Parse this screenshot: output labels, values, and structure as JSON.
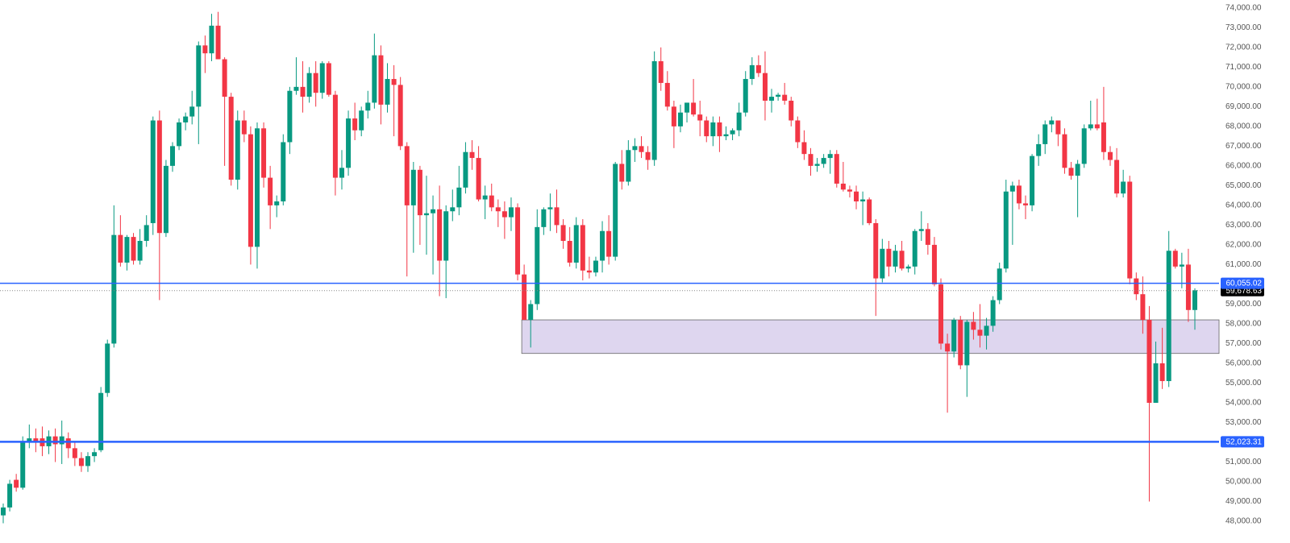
{
  "chart_data": {
    "type": "candlestick",
    "up_color": "#089981",
    "down_color": "#f23645",
    "ylim": [
      46900,
      74400
    ],
    "yticks": [
      {
        "value": 74000,
        "label": "74,000.00"
      },
      {
        "value": 73000,
        "label": "73,000.00"
      },
      {
        "value": 72000,
        "label": "72,000.00"
      },
      {
        "value": 71000,
        "label": "71,000.00"
      },
      {
        "value": 70000,
        "label": "70,000.00"
      },
      {
        "value": 69000,
        "label": "69,000.00"
      },
      {
        "value": 68000,
        "label": "68,000.00"
      },
      {
        "value": 67000,
        "label": "67,000.00"
      },
      {
        "value": 66000,
        "label": "66,000.00"
      },
      {
        "value": 65000,
        "label": "65,000.00"
      },
      {
        "value": 64000,
        "label": "64,000.00"
      },
      {
        "value": 63000,
        "label": "63,000.00"
      },
      {
        "value": 62000,
        "label": "62,000.00"
      },
      {
        "value": 61000,
        "label": "61,000.00"
      },
      {
        "value": 59000,
        "label": "59,000.00"
      },
      {
        "value": 58000,
        "label": "58,000.00"
      },
      {
        "value": 57000,
        "label": "57,000.00"
      },
      {
        "value": 56000,
        "label": "56,000.00"
      },
      {
        "value": 55000,
        "label": "55,000.00"
      },
      {
        "value": 54000,
        "label": "54,000.00"
      },
      {
        "value": 53000,
        "label": "53,000.00"
      },
      {
        "value": 51000,
        "label": "51,000.00"
      },
      {
        "value": 50000,
        "label": "50,000.00"
      },
      {
        "value": 49000,
        "label": "49,000.00"
      },
      {
        "value": 48000,
        "label": "48,000.00"
      }
    ],
    "horizontal_lines": [
      {
        "value": 60055.02,
        "label": "60,055.02",
        "color": "#2962ff"
      },
      {
        "value": 52023.31,
        "label": "52,023.31",
        "color": "#2962ff"
      }
    ],
    "current_price": {
      "value": 59678.63,
      "label": "59,678.63",
      "color": "#000000"
    },
    "zone": {
      "from_candle": 80,
      "high": 58200,
      "low": 56500,
      "color": "#ded6ef"
    },
    "open": [
      48300,
      48700,
      50100,
      49700,
      52000,
      52200,
      52200,
      51800,
      52300,
      51900,
      52200,
      51700,
      51200,
      50800,
      51300,
      51600,
      54500,
      57000,
      62500,
      61100,
      62400,
      61200,
      62200,
      63100,
      68300,
      62600,
      66000,
      67000,
      68200,
      68500,
      69000,
      72100,
      71700,
      73100,
      71400,
      69500,
      65300,
      68300,
      67600,
      61900,
      67900,
      65400,
      64000,
      64200,
      67200,
      69800,
      70000,
      69500,
      70700,
      69700,
      71200,
      69600,
      65400,
      65900,
      68400,
      67800,
      68800,
      69200,
      71600,
      69100,
      70400,
      70100,
      67000,
      64000,
      65800,
      63500,
      63600,
      63800,
      61200,
      63700,
      63900,
      64900,
      66700,
      66400,
      64300,
      64500,
      63900,
      63700,
      63400,
      63900,
      60500,
      58200,
      59000,
      62900,
      63800,
      63900,
      63000,
      62200,
      61100,
      63000,
      60700,
      60600,
      61200,
      62700,
      61400,
      66100,
      65200,
      66800,
      67000,
      66700,
      66300,
      71300,
      70200,
      69000,
      68000,
      68700,
      69200,
      68600,
      68300,
      67500,
      68200,
      67500,
      67600,
      67800,
      68700,
      70400,
      71100,
      70700,
      69300,
      69500,
      69600,
      69300,
      68300,
      67200,
      66600,
      66000,
      66100,
      66400,
      66600,
      65100,
      64800,
      64700,
      64200,
      64300,
      63100,
      60300,
      61800,
      60900,
      61700,
      60800,
      60900,
      62700,
      62800,
      62000,
      60000,
      57000,
      56600,
      58200,
      55900,
      58100,
      57700,
      57400,
      57900,
      59200,
      60800,
      64700,
      65000,
      64100,
      64000,
      66500,
      67100,
      68100,
      68300,
      67600,
      65900,
      65500,
      66100,
      67900,
      68100,
      68200,
      66700,
      66300,
      64600,
      65200,
      60300,
      59500,
      58200,
      54000,
      56000,
      55100,
      61700,
      60900,
      61000,
      58700
    ],
    "high": [
      48900,
      50100,
      50400,
      52300,
      52900,
      52700,
      52800,
      52600,
      52700,
      53100,
      52500,
      52000,
      51500,
      51500,
      51700,
      54800,
      57200,
      64000,
      63500,
      62500,
      62600,
      62800,
      63500,
      68500,
      68800,
      66300,
      67200,
      68400,
      68700,
      69800,
      72300,
      72600,
      73700,
      73800,
      71500,
      69700,
      68800,
      68800,
      68000,
      68200,
      68200,
      66000,
      64500,
      67600,
      70000,
      71500,
      71300,
      71000,
      71300,
      71300,
      71300,
      69800,
      66800,
      68800,
      69200,
      69000,
      69800,
      72700,
      72100,
      71200,
      71100,
      70500,
      67200,
      66200,
      66000,
      65500,
      64500,
      65000,
      64000,
      64800,
      66000,
      67200,
      67300,
      67000,
      65000,
      65100,
      64300,
      64200,
      64400,
      64100,
      61000,
      59200,
      63800,
      63900,
      64600,
      64800,
      63300,
      62900,
      63400,
      63300,
      61400,
      61400,
      63200,
      63500,
      66200,
      66800,
      67300,
      67400,
      67500,
      67000,
      71800,
      72000,
      70800,
      69300,
      69100,
      69200,
      70400,
      69300,
      68500,
      68500,
      68500,
      68000,
      67900,
      69200,
      70800,
      71500,
      71600,
      71800,
      69900,
      69700,
      70200,
      69500,
      68500,
      67800,
      66900,
      66400,
      66600,
      66800,
      66800,
      66200,
      65000,
      65000,
      64700,
      64400,
      63300,
      62300,
      62200,
      62000,
      62200,
      61000,
      62800,
      63700,
      63100,
      62400,
      60300,
      57500,
      58300,
      58400,
      58200,
      58600,
      59000,
      58300,
      59400,
      61100,
      65300,
      65200,
      65300,
      64500,
      66600,
      67600,
      68300,
      68500,
      68300,
      67900,
      66200,
      66300,
      68100,
      69300,
      69400,
      70000,
      67000,
      66900,
      65800,
      65500,
      60600,
      60400,
      58900,
      57100,
      57800,
      62700,
      61800,
      61600,
      61800,
      59800
    ],
    "low": [
      47900,
      48500,
      49500,
      49600,
      51700,
      51500,
      51300,
      51400,
      51000,
      50900,
      51200,
      50800,
      50500,
      50500,
      51000,
      51500,
      54300,
      56800,
      60900,
      60700,
      61000,
      61000,
      61900,
      62500,
      59200,
      62400,
      65700,
      66800,
      67800,
      68100,
      67100,
      70700,
      71300,
      71400,
      66000,
      65000,
      64800,
      67200,
      61000,
      60800,
      64900,
      62800,
      63400,
      64000,
      66600,
      69600,
      68700,
      69200,
      69000,
      69400,
      69500,
      64500,
      64800,
      65500,
      67300,
      67500,
      68400,
      68900,
      68100,
      68700,
      67500,
      66800,
      60400,
      61600,
      62000,
      61500,
      60500,
      59400,
      59300,
      63200,
      63500,
      64600,
      65800,
      64200,
      63300,
      63700,
      62900,
      62300,
      62700,
      60200,
      58200,
      56800,
      58700,
      62500,
      62700,
      62600,
      61800,
      60900,
      60800,
      60200,
      60300,
      60400,
      60600,
      61000,
      61200,
      64800,
      65000,
      66200,
      66400,
      65800,
      66000,
      69800,
      68800,
      66900,
      67700,
      68200,
      68500,
      67500,
      67200,
      67000,
      66700,
      67300,
      67300,
      67500,
      68500,
      70100,
      70500,
      68300,
      68700,
      69300,
      69100,
      68000,
      66900,
      66300,
      65500,
      65700,
      65900,
      65600,
      64900,
      64700,
      64400,
      63800,
      63000,
      63000,
      58400,
      60100,
      60400,
      60600,
      60700,
      60600,
      60500,
      62200,
      61500,
      59900,
      56700,
      53500,
      56300,
      55700,
      54300,
      57200,
      56800,
      56700,
      57600,
      59000,
      60600,
      62000,
      63800,
      63300,
      63700,
      66000,
      66600,
      67700,
      67000,
      65600,
      65300,
      63400,
      65900,
      67800,
      67800,
      66300,
      66000,
      64400,
      64400,
      60000,
      59200,
      57500,
      49000,
      54000,
      54700,
      54800,
      60800,
      59800,
      58100,
      57700
    ],
    "close": [
      48700,
      49900,
      49700,
      52000,
      52200,
      52000,
      51800,
      52300,
      51900,
      52300,
      51700,
      51200,
      50800,
      51300,
      51500,
      54500,
      57000,
      62500,
      61100,
      62400,
      61200,
      62200,
      63000,
      68300,
      62600,
      66000,
      67000,
      68200,
      68500,
      69000,
      72100,
      71700,
      73100,
      71400,
      69500,
      65300,
      68300,
      67600,
      61900,
      67900,
      65400,
      64000,
      64200,
      67200,
      69800,
      70000,
      69500,
      70700,
      69700,
      71200,
      69600,
      65400,
      65900,
      68400,
      67800,
      68800,
      69200,
      71600,
      69100,
      70400,
      70100,
      67000,
      64000,
      65800,
      63500,
      63600,
      63800,
      61200,
      63700,
      63900,
      64900,
      66700,
      66400,
      64300,
      64500,
      63900,
      63700,
      63400,
      63900,
      60500,
      58200,
      59000,
      62900,
      63800,
      63900,
      63000,
      62200,
      61100,
      63000,
      60700,
      60600,
      61200,
      62700,
      61400,
      66100,
      65200,
      66800,
      67000,
      66700,
      66300,
      71300,
      70200,
      69000,
      68000,
      68700,
      69200,
      68600,
      68300,
      67500,
      68200,
      67500,
      67600,
      67800,
      68700,
      70400,
      71100,
      70700,
      69300,
      69500,
      69600,
      69300,
      68300,
      67200,
      66600,
      66000,
      66100,
      66400,
      66600,
      65100,
      64800,
      64700,
      64200,
      64300,
      63100,
      60300,
      61800,
      60900,
      61700,
      60800,
      60900,
      62700,
      62800,
      62000,
      60000,
      57000,
      56600,
      58200,
      55900,
      58100,
      57700,
      57400,
      57900,
      59200,
      60800,
      64700,
      65000,
      64100,
      64000,
      66500,
      67100,
      68100,
      68300,
      67600,
      65900,
      65500,
      66100,
      67900,
      68100,
      67900,
      66700,
      66300,
      64600,
      65200,
      60300,
      59500,
      58200,
      54000,
      56000,
      55100,
      61700,
      60900,
      61000,
      58700,
      59700
    ]
  }
}
